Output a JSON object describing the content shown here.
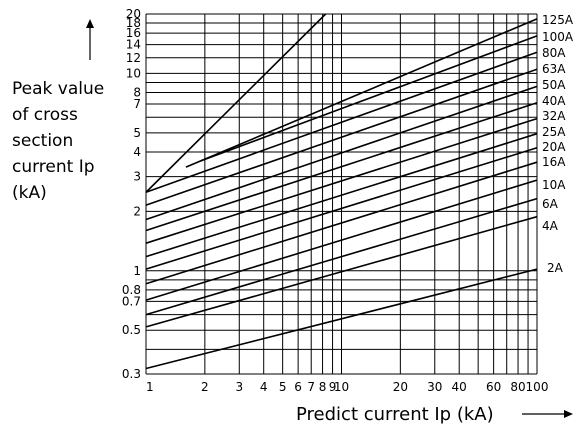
{
  "chart_data": {
    "type": "line",
    "xscale": "log",
    "yscale": "log",
    "xlabel": "Predict current Ip (kA)",
    "ylabel_lines": [
      "Peak value",
      "of cross",
      "section",
      "current Ip",
      "(kA)"
    ],
    "xlim": [
      1,
      100
    ],
    "ylim": [
      0.3,
      20
    ],
    "grid": true,
    "x_ticks": [
      {
        "v": 1,
        "label": "1"
      },
      {
        "v": 2,
        "label": "2"
      },
      {
        "v": 3,
        "label": "3"
      },
      {
        "v": 4,
        "label": "4"
      },
      {
        "v": 5,
        "label": "5"
      },
      {
        "v": 6,
        "label": "6"
      },
      {
        "v": 7,
        "label": "7"
      },
      {
        "v": 8,
        "label": "8"
      },
      {
        "v": 9,
        "label": "9"
      },
      {
        "v": 10,
        "label": "10"
      },
      {
        "v": 20,
        "label": "20"
      },
      {
        "v": 30,
        "label": "30"
      },
      {
        "v": 40,
        "label": "40"
      },
      {
        "v": 60,
        "label": "60"
      },
      {
        "v": 80,
        "label": "80"
      },
      {
        "v": 100,
        "label": "100"
      }
    ],
    "x_grid": [
      1,
      2,
      3,
      4,
      5,
      6,
      7,
      8,
      9,
      10,
      20,
      30,
      40,
      50,
      60,
      70,
      80,
      90,
      100
    ],
    "y_ticks": [
      {
        "v": 0.3,
        "label": "0.3"
      },
      {
        "v": 0.5,
        "label": "0.5"
      },
      {
        "v": 0.7,
        "label": "0.7"
      },
      {
        "v": 0.8,
        "label": "0.8"
      },
      {
        "v": 1,
        "label": "1"
      },
      {
        "v": 2,
        "label": "2"
      },
      {
        "v": 3,
        "label": "3"
      },
      {
        "v": 4,
        "label": "4"
      },
      {
        "v": 5,
        "label": "5"
      },
      {
        "v": 7,
        "label": "7"
      },
      {
        "v": 8,
        "label": "8"
      },
      {
        "v": 10,
        "label": "10"
      },
      {
        "v": 12,
        "label": "12"
      },
      {
        "v": 14,
        "label": "14"
      },
      {
        "v": 16,
        "label": "16"
      },
      {
        "v": 18,
        "label": "18"
      },
      {
        "v": 20,
        "label": "20"
      }
    ],
    "y_grid": [
      0.3,
      0.4,
      0.5,
      0.6,
      0.7,
      0.8,
      0.9,
      1,
      2,
      3,
      4,
      5,
      6,
      7,
      8,
      9,
      10,
      12,
      14,
      16,
      18,
      20
    ],
    "envelope": {
      "x": [
        1,
        8.3
      ],
      "y": [
        2.5,
        20
      ]
    },
    "series": [
      {
        "name": "125A",
        "x": [
          1.6,
          100
        ],
        "y": [
          3.35,
          18.9
        ]
      },
      {
        "name": "100A",
        "x": [
          1.9,
          100
        ],
        "y": [
          3.6,
          15.5
        ]
      },
      {
        "name": "80A",
        "x": [
          1,
          100
        ],
        "y": [
          2.5,
          12.8
        ]
      },
      {
        "name": "63A",
        "x": [
          1,
          100
        ],
        "y": [
          2.15,
          10.5
        ]
      },
      {
        "name": "50A",
        "x": [
          1,
          100
        ],
        "y": [
          1.82,
          8.6
        ]
      },
      {
        "name": "40A",
        "x": [
          1,
          100
        ],
        "y": [
          1.6,
          7.1
        ]
      },
      {
        "name": "32A",
        "x": [
          1,
          100
        ],
        "y": [
          1.38,
          5.9
        ]
      },
      {
        "name": "25A",
        "x": [
          1,
          100
        ],
        "y": [
          1.18,
          4.95
        ]
      },
      {
        "name": "20A",
        "x": [
          1,
          100
        ],
        "y": [
          1.02,
          4.2
        ]
      },
      {
        "name": "16A",
        "x": [
          1,
          100
        ],
        "y": [
          0.86,
          3.55
        ]
      },
      {
        "name": "10A",
        "x": [
          1,
          100
        ],
        "y": [
          0.71,
          2.88
        ]
      },
      {
        "name": "6A",
        "x": [
          1,
          100
        ],
        "y": [
          0.6,
          2.32
        ]
      },
      {
        "name": "4A",
        "x": [
          1,
          100
        ],
        "y": [
          0.52,
          1.88
        ]
      },
      {
        "name": "2A",
        "x": [
          1,
          100
        ],
        "y": [
          0.32,
          1.02
        ]
      }
    ]
  }
}
